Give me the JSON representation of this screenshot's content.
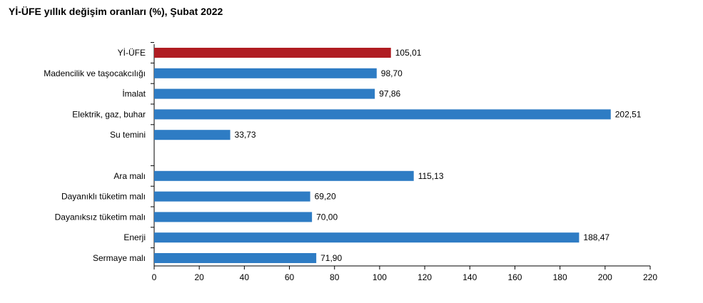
{
  "chart_data": {
    "type": "bar",
    "orientation": "horizontal",
    "title": "Yİ-ÜFE yıllık değişim oranları (%), Şubat 2022",
    "xlabel": "",
    "ylabel": "",
    "xlim": [
      0,
      220
    ],
    "ticks": [
      0,
      20,
      40,
      60,
      80,
      100,
      120,
      140,
      160,
      180,
      200,
      220
    ],
    "grid": false,
    "legend": "none",
    "highlight_color": "#b01c22",
    "bar_color": "#2e7cc4",
    "groups": [
      {
        "categories": [
          "Yİ-ÜFE",
          "Madencilik ve taşocakcılığı",
          "İmalat",
          "Elektrik, gaz, buhar",
          "Su temini"
        ],
        "values": [
          105.01,
          98.7,
          97.86,
          202.51,
          33.73
        ],
        "value_labels": [
          "105,01",
          "98,70",
          "97,86",
          "202,51",
          "33,73"
        ]
      },
      {
        "categories": [
          "Ara malı",
          "Dayanıklı tüketim malı",
          "Dayanıksız tüketim malı",
          "Enerji",
          "Sermaye malı"
        ],
        "values": [
          115.13,
          69.2,
          70.0,
          188.47,
          71.9
        ],
        "value_labels": [
          "115,13",
          "69,20",
          "70,00",
          "188,47",
          "71,90"
        ]
      }
    ],
    "highlighted_category": "Yİ-ÜFE"
  }
}
